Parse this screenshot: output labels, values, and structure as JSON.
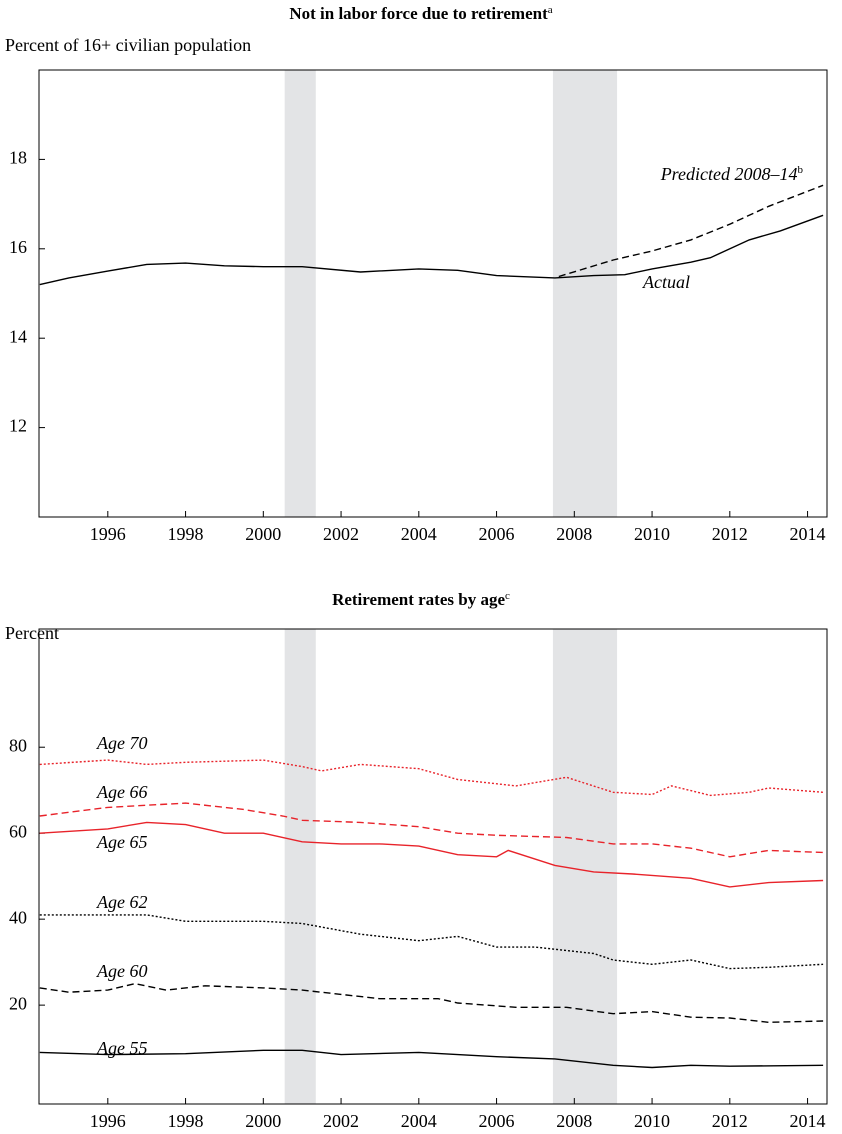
{
  "chart_data": [
    {
      "type": "line",
      "title": "Not in labor force due to retirement",
      "title_note": "a",
      "y_label": "Percent of 16+ civilian population",
      "xlim": [
        1994.23,
        2014.5
      ],
      "xticks": [
        1996,
        1998,
        2000,
        2002,
        2004,
        2006,
        2008,
        2010,
        2012,
        2014
      ],
      "ylim": [
        10,
        20
      ],
      "yticks": [
        12,
        14,
        16,
        18
      ],
      "shaded_periods": [
        [
          2000.55,
          2001.35
        ],
        [
          2007.45,
          2009.1
        ]
      ],
      "series": [
        {
          "name": "Actual",
          "color": "#000000",
          "style": "solid",
          "x": [
            1994.25,
            1995,
            1996,
            1997,
            1998,
            1999,
            2000,
            2001,
            2002.5,
            2004,
            2005,
            2006,
            2007.5,
            2008.5,
            2009.3,
            2010,
            2011,
            2011.5,
            2012.5,
            2013.3,
            2014.4
          ],
          "values": [
            15.2,
            15.35,
            15.5,
            15.65,
            15.68,
            15.62,
            15.6,
            15.6,
            15.48,
            15.55,
            15.52,
            15.4,
            15.35,
            15.4,
            15.42,
            15.55,
            15.7,
            15.8,
            16.2,
            16.4,
            16.75
          ]
        },
        {
          "name": "Predicted 2008–14",
          "name_note": "b",
          "color": "#000000",
          "style": "dashed",
          "x": [
            2007.6,
            2009,
            2010,
            2011,
            2012,
            2013,
            2014.4
          ],
          "values": [
            15.38,
            15.75,
            15.95,
            16.2,
            16.55,
            16.95,
            17.42
          ]
        }
      ]
    },
    {
      "type": "line",
      "title": "Retirement rates by age",
      "title_note": "c",
      "y_label": "Percent",
      "xlim": [
        1994.23,
        2014.5
      ],
      "xticks": [
        1996,
        1998,
        2000,
        2002,
        2004,
        2006,
        2008,
        2010,
        2012,
        2014
      ],
      "ylim": [
        -3,
        107.5
      ],
      "yticks": [
        20,
        40,
        60,
        80
      ],
      "shaded_periods": [
        [
          2000.55,
          2001.35
        ],
        [
          2007.45,
          2009.1
        ]
      ],
      "series": [
        {
          "name": "Age 70",
          "color": "#e8232a",
          "style": "dotted",
          "x": [
            1994.25,
            1996,
            1997,
            1998,
            2000,
            2001,
            2001.5,
            2002.5,
            2004,
            2005,
            2006.5,
            2007.8,
            2009,
            2010,
            2010.5,
            2011.5,
            2012.5,
            2013,
            2014.4
          ],
          "values": [
            76,
            77,
            76,
            76.5,
            77,
            75.5,
            74.5,
            76,
            75,
            72.5,
            71,
            73,
            69.5,
            69,
            71,
            68.8,
            69.5,
            70.5,
            69.5
          ]
        },
        {
          "name": "Age 66",
          "color": "#e8232a",
          "style": "dashed",
          "x": [
            1994.25,
            1996,
            1998,
            1999.5,
            2000.5,
            2001,
            2002.5,
            2004,
            2005,
            2006,
            2007.8,
            2009,
            2010,
            2011,
            2012,
            2013,
            2014.4
          ],
          "values": [
            64,
            66,
            67,
            65.5,
            64,
            63,
            62.5,
            61.5,
            60,
            59.5,
            59,
            57.5,
            57.5,
            56.5,
            54.5,
            56,
            55.5
          ]
        },
        {
          "name": "Age 65",
          "color": "#e8232a",
          "style": "solid",
          "x": [
            1994.25,
            1996,
            1997,
            1998,
            1999,
            2000,
            2001,
            2002,
            2003,
            2004,
            2005,
            2006,
            2006.3,
            2007.5,
            2008.5,
            2009.5,
            2011,
            2012,
            2013,
            2014.4
          ],
          "values": [
            60,
            61,
            62.5,
            62,
            60,
            60,
            58,
            57.5,
            57.5,
            57,
            55,
            54.5,
            56,
            52.5,
            51,
            50.5,
            49.5,
            47.5,
            48.5,
            49
          ]
        },
        {
          "name": "Age 62",
          "color": "#000000",
          "style": "dotted",
          "x": [
            1994.25,
            1996,
            1997,
            1998,
            2000,
            2001,
            2002.5,
            2004,
            2005,
            2006,
            2007,
            2008.5,
            2009,
            2010,
            2011,
            2012,
            2013,
            2014.4
          ],
          "values": [
            41,
            41,
            41,
            39.5,
            39.5,
            39,
            36.5,
            35,
            36,
            33.5,
            33.5,
            32,
            30.5,
            29.5,
            30.5,
            28.5,
            28.8,
            29.5
          ]
        },
        {
          "name": "Age 60",
          "color": "#000000",
          "style": "dashed",
          "x": [
            1994.25,
            1995,
            1996,
            1996.7,
            1997.5,
            1998.5,
            2000,
            2001,
            2002,
            2003,
            2004.5,
            2005,
            2006.5,
            2007.8,
            2009,
            2010,
            2011,
            2012,
            2013,
            2014.4
          ],
          "values": [
            24,
            23,
            23.5,
            25,
            23.5,
            24.5,
            24,
            23.5,
            22.5,
            21.5,
            21.5,
            20.5,
            19.5,
            19.5,
            18,
            18.5,
            17.2,
            17,
            16,
            16.3
          ]
        },
        {
          "name": "Age 55",
          "color": "#000000",
          "style": "solid",
          "x": [
            1994.25,
            1996,
            1998,
            2000,
            2001,
            2002,
            2004,
            2006,
            2007.5,
            2009,
            2010,
            2011,
            2012,
            2014.4
          ],
          "values": [
            9,
            8.5,
            8.7,
            9.5,
            9.5,
            8.5,
            9,
            8,
            7.5,
            6,
            5.5,
            6,
            5.8,
            6
          ]
        }
      ]
    }
  ]
}
